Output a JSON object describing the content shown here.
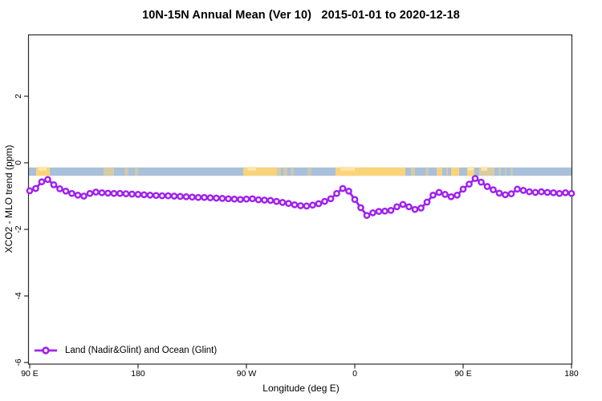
{
  "title": "10N-15N Annual Mean (Ver 10)   2015-01-01 to 2020-12-18",
  "chart_data": {
    "type": "line",
    "title": "10N-15N Annual Mean (Ver 10)   2015-01-01 to 2020-12-18",
    "xlabel": "Longitude (deg E)",
    "ylabel": "XCO2 - MLO trend (ppm)",
    "xlim": [
      90,
      540
    ],
    "ylim": [
      -6,
      3.85
    ],
    "grid": false,
    "x_ticks": [
      {
        "lon": 90,
        "label": "90 E"
      },
      {
        "lon": 180,
        "label": "180"
      },
      {
        "lon": 270,
        "label": "90 W"
      },
      {
        "lon": 360,
        "label": "0"
      },
      {
        "lon": 450,
        "label": "90 E"
      },
      {
        "lon": 540,
        "label": "180"
      }
    ],
    "y_ticks": [
      {
        "value": 2,
        "label": "2"
      },
      {
        "value": 0,
        "label": "0"
      },
      {
        "value": -2,
        "label": "-2"
      },
      {
        "value": -4,
        "label": "-4"
      },
      {
        "value": -6,
        "label": "-6"
      }
    ],
    "series": [
      {
        "name": "Land (Nadir&Glint) and Ocean (Glint)",
        "color": "#A020F0",
        "marker": "open-circle",
        "x": [
          90,
          95,
          100,
          105,
          110,
          115,
          120,
          125,
          130,
          135,
          140,
          145,
          150,
          155,
          160,
          165,
          170,
          175,
          180,
          185,
          190,
          195,
          200,
          205,
          210,
          215,
          220,
          225,
          230,
          235,
          240,
          245,
          250,
          255,
          260,
          265,
          270,
          275,
          280,
          285,
          290,
          295,
          300,
          305,
          310,
          315,
          320,
          325,
          330,
          335,
          340,
          345,
          350,
          355,
          360,
          365,
          370,
          375,
          380,
          385,
          390,
          395,
          400,
          405,
          410,
          415,
          420,
          425,
          430,
          435,
          440,
          445,
          450,
          455,
          460,
          465,
          470,
          475,
          480,
          485,
          490,
          495,
          500,
          505,
          510,
          515,
          520,
          525,
          530,
          535,
          540
        ],
        "values": [
          -0.84,
          -0.77,
          -0.57,
          -0.5,
          -0.66,
          -0.78,
          -0.85,
          -0.92,
          -0.97,
          -1.0,
          -0.92,
          -0.88,
          -0.9,
          -0.91,
          -0.92,
          -0.92,
          -0.93,
          -0.94,
          -0.95,
          -0.96,
          -0.97,
          -0.98,
          -0.99,
          -0.99,
          -1.0,
          -1.01,
          -1.02,
          -1.03,
          -1.04,
          -1.04,
          -1.05,
          -1.06,
          -1.07,
          -1.08,
          -1.09,
          -1.1,
          -1.09,
          -1.08,
          -1.11,
          -1.12,
          -1.13,
          -1.16,
          -1.19,
          -1.22,
          -1.26,
          -1.29,
          -1.3,
          -1.27,
          -1.23,
          -1.16,
          -1.08,
          -0.92,
          -0.77,
          -0.85,
          -1.1,
          -1.35,
          -1.58,
          -1.5,
          -1.46,
          -1.45,
          -1.43,
          -1.32,
          -1.25,
          -1.32,
          -1.4,
          -1.36,
          -1.18,
          -0.97,
          -0.89,
          -0.95,
          -1.02,
          -0.97,
          -0.79,
          -0.64,
          -0.47,
          -0.58,
          -0.71,
          -0.81,
          -0.91,
          -0.96,
          -0.93,
          -0.79,
          -0.83,
          -0.87,
          -0.89,
          -0.87,
          -0.89,
          -0.9,
          -0.92,
          -0.9,
          -0.92
        ]
      }
    ],
    "legend": {
      "position": "bottom-left",
      "entries": [
        {
          "label": "Land (Nadir&Glint) and Ocean (Glint)",
          "color": "#A020F0"
        }
      ]
    },
    "map_band": {
      "value_top": -0.14,
      "value_bottom": -0.39,
      "ocean_color": "#A9C0DB",
      "land_color": "#FBD479",
      "land_light_color": "#FDE7AE",
      "land_segments": [
        {
          "from": 95.3,
          "to": 106.7,
          "opacity": 1
        },
        {
          "from": 151.3,
          "to": 160,
          "opacity": 0.55
        },
        {
          "from": 168.7,
          "to": 172,
          "opacity": 0.45
        },
        {
          "from": 177.3,
          "to": 180,
          "opacity": 0.45
        },
        {
          "from": 267.3,
          "to": 295.3,
          "opacity": 0.95
        },
        {
          "from": 295.3,
          "to": 298.7,
          "opacity": 0.5
        },
        {
          "from": 300.7,
          "to": 304,
          "opacity": 0.5
        },
        {
          "from": 306.7,
          "to": 309.3,
          "opacity": 0.45
        },
        {
          "from": 320.7,
          "to": 324,
          "opacity": 0.4
        },
        {
          "from": 344,
          "to": 402,
          "opacity": 1
        },
        {
          "from": 406.7,
          "to": 410,
          "opacity": 0.55
        },
        {
          "from": 418.7,
          "to": 421.3,
          "opacity": 0.45
        },
        {
          "from": 428,
          "to": 432.7,
          "opacity": 0.9
        },
        {
          "from": 436,
          "to": 437.5,
          "opacity": 0.5
        },
        {
          "from": 440,
          "to": 446.7,
          "opacity": 1
        },
        {
          "from": 453.3,
          "to": 459.3,
          "opacity": 1
        },
        {
          "from": 463.3,
          "to": 476,
          "opacity": 0.6
        },
        {
          "from": 479.3,
          "to": 481.3,
          "opacity": 0.4
        },
        {
          "from": 484.7,
          "to": 486,
          "opacity": 0.4
        },
        {
          "from": 489.3,
          "to": 491.3,
          "opacity": 0.4
        }
      ],
      "light_spots": [
        {
          "from": 97.3,
          "to": 104
        },
        {
          "from": 271,
          "to": 278
        },
        {
          "from": 348,
          "to": 360
        },
        {
          "from": 454,
          "to": 458.7
        },
        {
          "from": 465,
          "to": 470
        }
      ]
    }
  }
}
